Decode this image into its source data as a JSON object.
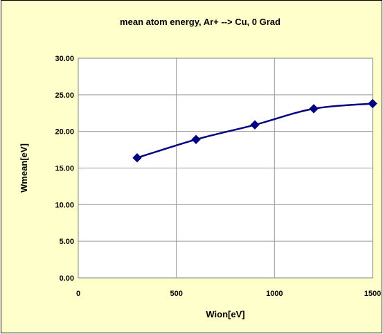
{
  "chart_data": {
    "type": "line",
    "title": "mean atom energy, Ar+ --> Cu, 0 Grad",
    "xlabel": "Wion[eV]",
    "ylabel": "Wmean[eV]",
    "xlim": [
      0,
      1500
    ],
    "ylim": [
      0,
      30
    ],
    "x_ticks": [
      "0",
      "500",
      "1000",
      "1500"
    ],
    "y_ticks": [
      "0.00",
      "5.00",
      "10.00",
      "15.00",
      "20.00",
      "25.00",
      "30.00"
    ],
    "grid": true,
    "legend": "none",
    "series": [
      {
        "x": [
          300,
          600,
          900,
          1200,
          1500
        ],
        "y": [
          16.4,
          18.9,
          20.9,
          23.1,
          23.8
        ],
        "color": "#000080",
        "marker": "diamond"
      }
    ],
    "plot_background": "#ffffff",
    "chart_background": "#ffffcc"
  }
}
